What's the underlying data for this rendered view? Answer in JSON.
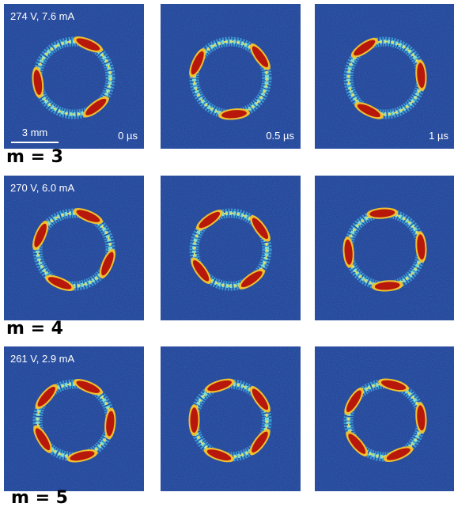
{
  "rows": [
    {
      "label": "274 V, 7.6 mA",
      "mode": "m = 3"
    },
    {
      "label": "270 V, 6.0 mA",
      "mode": "m = 4"
    },
    {
      "label": "261 V, 2.9 mA",
      "mode": "m = 5"
    }
  ],
  "times": [
    "0 µs",
    "0.5 µs",
    "1 µs"
  ],
  "scale_bar": "3 mm"
}
